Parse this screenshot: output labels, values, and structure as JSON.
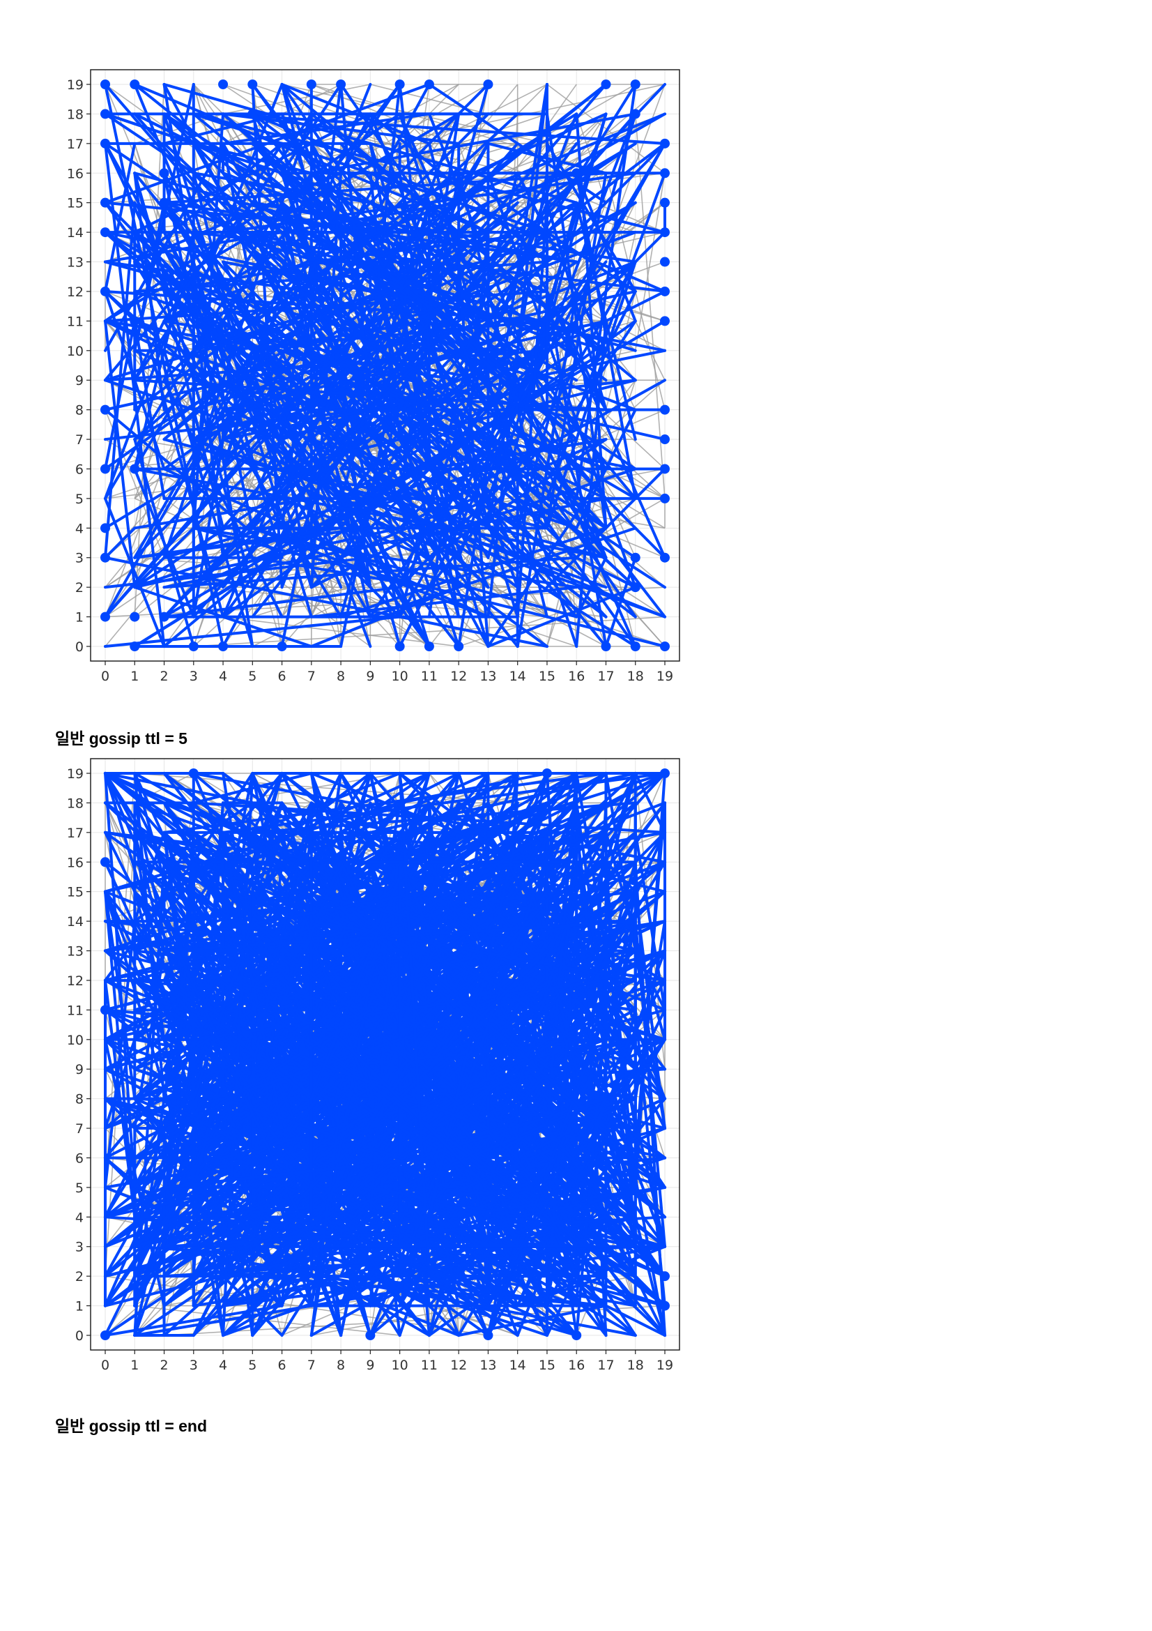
{
  "captions": {
    "first": "일반 gossip ttl = 5",
    "second": "일반 gossip ttl = end"
  },
  "colors": {
    "edge_gray": "#9e9e9e",
    "edge_blue": "#0047ff",
    "node_blue": "#0047ff",
    "grid": "#e6e6e6",
    "frame": "#222222",
    "tick_text": "#333333"
  },
  "chart_data": [
    {
      "type": "network-scatter",
      "title": "",
      "xlabel": "",
      "ylabel": "",
      "xlim": [
        0,
        19
      ],
      "ylim": [
        0,
        19
      ],
      "xticks": [
        "0",
        "1",
        "2",
        "3",
        "4",
        "5",
        "6",
        "7",
        "8",
        "9",
        "10",
        "11",
        "12",
        "13",
        "14",
        "15",
        "16",
        "17",
        "18",
        "19"
      ],
      "yticks": [
        "0",
        "1",
        "2",
        "3",
        "4",
        "5",
        "6",
        "7",
        "8",
        "9",
        "10",
        "11",
        "12",
        "13",
        "14",
        "15",
        "16",
        "17",
        "18",
        "19"
      ],
      "grid": true,
      "node_grid": [
        20,
        20
      ],
      "node_count": 400,
      "gray_edge_count": 420,
      "blue_edge_count": 520,
      "highlighted_nodes": [
        [
          0,
          19
        ],
        [
          1,
          19
        ],
        [
          4,
          19
        ],
        [
          5,
          19
        ],
        [
          7,
          19
        ],
        [
          8,
          19
        ],
        [
          10,
          19
        ],
        [
          11,
          19
        ],
        [
          13,
          19
        ],
        [
          17,
          19
        ],
        [
          18,
          19
        ],
        [
          0,
          18
        ],
        [
          19,
          17
        ],
        [
          0,
          17
        ],
        [
          19,
          16
        ],
        [
          0,
          15
        ],
        [
          19,
          15
        ],
        [
          0,
          14
        ],
        [
          19,
          14
        ],
        [
          19,
          13
        ],
        [
          0,
          12
        ],
        [
          19,
          12
        ],
        [
          19,
          11
        ],
        [
          0,
          8
        ],
        [
          19,
          8
        ],
        [
          19,
          7
        ],
        [
          0,
          6
        ],
        [
          19,
          6
        ],
        [
          19,
          5
        ],
        [
          0,
          4
        ],
        [
          0,
          3
        ],
        [
          19,
          3
        ],
        [
          0,
          1
        ],
        [
          1,
          0
        ],
        [
          3,
          0
        ],
        [
          4,
          0
        ],
        [
          6,
          0
        ],
        [
          10,
          0
        ],
        [
          11,
          0
        ],
        [
          12,
          0
        ],
        [
          17,
          0
        ],
        [
          18,
          0
        ],
        [
          19,
          0
        ],
        [
          1,
          11
        ],
        [
          1,
          6
        ],
        [
          1,
          1
        ],
        [
          2,
          1
        ],
        [
          2,
          15
        ],
        [
          2,
          16
        ],
        [
          5,
          18
        ],
        [
          18,
          3
        ],
        [
          18,
          2
        ],
        [
          18,
          18
        ],
        [
          16,
          16
        ]
      ]
    },
    {
      "type": "network-scatter",
      "title": "",
      "xlabel": "",
      "ylabel": "",
      "xlim": [
        0,
        19
      ],
      "ylim": [
        0,
        19
      ],
      "xticks": [
        "0",
        "1",
        "2",
        "3",
        "4",
        "5",
        "6",
        "7",
        "8",
        "9",
        "10",
        "11",
        "12",
        "13",
        "14",
        "15",
        "16",
        "17",
        "18",
        "19"
      ],
      "yticks": [
        "0",
        "1",
        "2",
        "3",
        "4",
        "5",
        "6",
        "7",
        "8",
        "9",
        "10",
        "11",
        "12",
        "13",
        "14",
        "15",
        "16",
        "17",
        "18",
        "19"
      ],
      "grid": true,
      "node_grid": [
        20,
        20
      ],
      "node_count": 400,
      "gray_edge_count": 420,
      "blue_edge_count": 1300,
      "highlighted_nodes": [
        [
          3,
          19
        ],
        [
          15,
          19
        ],
        [
          19,
          19
        ],
        [
          0,
          16
        ],
        [
          0,
          11
        ],
        [
          19,
          2
        ],
        [
          19,
          1
        ],
        [
          0,
          0
        ],
        [
          9,
          0
        ],
        [
          13,
          0
        ],
        [
          16,
          0
        ]
      ]
    }
  ]
}
